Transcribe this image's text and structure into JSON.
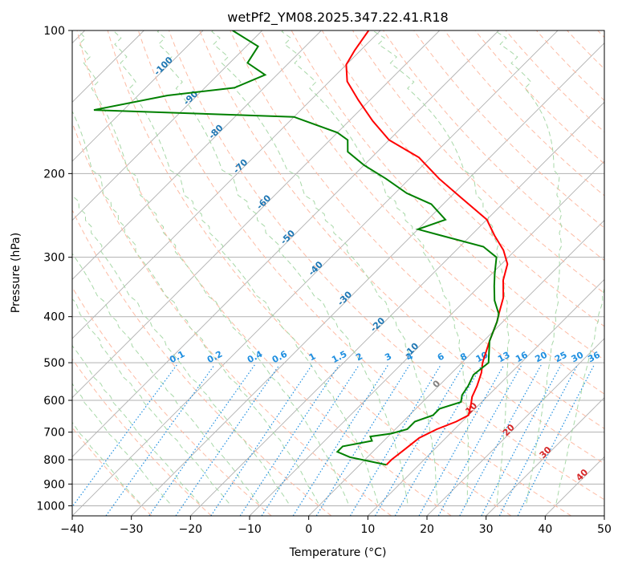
{
  "chart_data": {
    "type": "line",
    "subtype": "skew-T log-p diagram",
    "title": "wetPf2_YM08.2025.347.22.41.R18",
    "xlabel": "Temperature (°C)",
    "ylabel": "Pressure (hPa)",
    "xlim": [
      -40,
      50
    ],
    "ylim": [
      1050,
      100
    ],
    "y_scale": "log",
    "x_ticks": [
      "−40",
      "−30",
      "−20",
      "−10",
      "0",
      "10",
      "20",
      "30",
      "40",
      "50"
    ],
    "y_ticks": [
      "100",
      "200",
      "300",
      "400",
      "500",
      "600",
      "700",
      "800",
      "900",
      "1000"
    ],
    "grid": true,
    "series": [
      {
        "role": "temperature",
        "color": "#ff0000",
        "points": [
          [
            4.5,
            820
          ],
          [
            4.5,
            800
          ],
          [
            5,
            760
          ],
          [
            5.5,
            720
          ],
          [
            7,
            690
          ],
          [
            9,
            665
          ],
          [
            10,
            645
          ],
          [
            8.5,
            610
          ],
          [
            7.5,
            590
          ],
          [
            6.5,
            560
          ],
          [
            5,
            525
          ],
          [
            3.5,
            500
          ],
          [
            1,
            450
          ],
          [
            -1,
            410
          ],
          [
            -2,
            395
          ],
          [
            -4,
            365
          ],
          [
            -7,
            335
          ],
          [
            -9,
            310
          ],
          [
            -12,
            290
          ],
          [
            -16,
            270
          ],
          [
            -20,
            250
          ],
          [
            -28,
            225
          ],
          [
            -35,
            205
          ],
          [
            -42,
            185
          ],
          [
            -50,
            170
          ],
          [
            -56,
            155
          ],
          [
            -62,
            140
          ],
          [
            -67,
            128
          ],
          [
            -70,
            118
          ],
          [
            -71,
            110
          ],
          [
            -72,
            100
          ]
        ]
      },
      {
        "role": "dewpoint",
        "color": "#008000",
        "points": [
          [
            4.5,
            820
          ],
          [
            -3,
            790
          ],
          [
            -6,
            770
          ],
          [
            -6,
            750
          ],
          [
            -2,
            730
          ],
          [
            -3,
            715
          ],
          [
            0,
            705
          ],
          [
            2,
            690
          ],
          [
            2,
            665
          ],
          [
            4,
            645
          ],
          [
            4,
            625
          ],
          [
            6.5,
            605
          ],
          [
            5.5,
            585
          ],
          [
            5,
            560
          ],
          [
            4,
            530
          ],
          [
            4.5,
            500
          ],
          [
            1,
            450
          ],
          [
            -1,
            410
          ],
          [
            -2,
            395
          ],
          [
            -5,
            370
          ],
          [
            -7.5,
            345
          ],
          [
            -9.5,
            325
          ],
          [
            -12,
            300
          ],
          [
            -16,
            285
          ],
          [
            -25,
            270
          ],
          [
            -30,
            262
          ],
          [
            -27,
            250
          ],
          [
            -32,
            232
          ],
          [
            -38,
            220
          ],
          [
            -44,
            205
          ],
          [
            -50,
            192
          ],
          [
            -55,
            180
          ],
          [
            -57,
            170
          ],
          [
            -60,
            164
          ],
          [
            -70,
            152
          ],
          [
            -105,
            147
          ],
          [
            -95,
            137
          ],
          [
            -85,
            132
          ],
          [
            -82,
            124
          ],
          [
            -87,
            117
          ],
          [
            -88,
            108
          ],
          [
            -95,
            100
          ]
        ]
      }
    ],
    "dry_adiabat_labels": [
      "-100",
      "-90",
      "-80",
      "-70",
      "-60",
      "-50",
      "-40",
      "-30",
      "-20",
      "-10",
      "0",
      "10",
      "20",
      "30",
      "40"
    ],
    "mixing_ratio_labels": [
      "0.1",
      "0.2",
      "0.4",
      "0.6",
      "1",
      "1.5",
      "2",
      "3",
      "4",
      "6",
      "8",
      "10",
      "13",
      "16",
      "20",
      "25",
      "30",
      "36"
    ],
    "colors": {
      "isotherm": "#b0b0b0",
      "isobar": "#b0b0b0",
      "dry_adiabat": "#fdbba4",
      "moist_adiabat": "#a8d8a8",
      "mixing_ratio": "#1f8fe0",
      "label_cold": "#1f77b4",
      "label_warm": "#d62728",
      "label_zero": "#808080"
    }
  }
}
